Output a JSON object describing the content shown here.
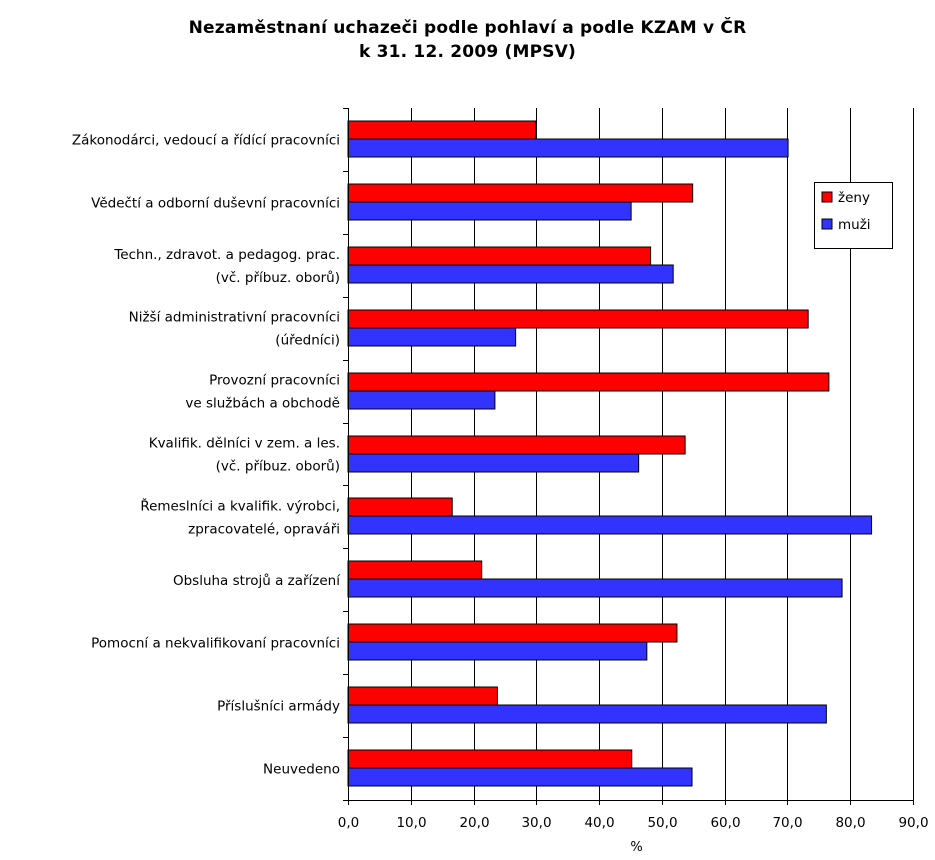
{
  "chart_data": {
    "type": "bar",
    "orientation": "horizontal",
    "title_line1": "Nezaměstnaní uchazeči podle pohlaví a podle KZAM v ČR",
    "title_line2": "k 31. 12. 2009 (MPSV)",
    "xlabel": "%",
    "ylabel": "",
    "xlim": [
      0,
      90
    ],
    "x_ticks": [
      "0,0",
      "10,0",
      "20,0",
      "30,0",
      "40,0",
      "50,0",
      "60,0",
      "70,0",
      "80,0",
      "90,0"
    ],
    "grid": "vertical",
    "legend_position": "top-right",
    "categories": [
      [
        "Zákonodárci, vedoucí a řídící pracovníci"
      ],
      [
        "Vědečtí a odborní duševní pracovníci"
      ],
      [
        "Techn., zdravot. a pedagog. prac.",
        "(vč. příbuz. oborů)"
      ],
      [
        "Nižší administrativní pracovníci",
        "(úředníci)"
      ],
      [
        "Provozní pracovníci",
        "ve službách a obchodě"
      ],
      [
        "Kvalifik. dělníci v zem. a les.",
        "(vč. příbuz. oborů)"
      ],
      [
        "Řemeslníci a kvalifik. výrobci,",
        "zpracovatelé, opraváři"
      ],
      [
        "Obsluha strojů a zařízení"
      ],
      [
        "Pomocní a nekvalifikovaní pracovníci"
      ],
      [
        "Příslušníci armády"
      ],
      [
        "Neuvedeno"
      ]
    ],
    "series": [
      {
        "name": "ženy",
        "color": "#ff0000",
        "values": [
          29.9,
          54.9,
          48.2,
          73.3,
          76.6,
          53.7,
          16.6,
          21.3,
          52.4,
          23.8,
          45.2
        ]
      },
      {
        "name": "muži",
        "color": "#3333ff",
        "values": [
          70.1,
          45.1,
          51.8,
          26.7,
          23.4,
          46.3,
          83.4,
          78.7,
          47.6,
          76.2,
          54.8
        ]
      }
    ]
  }
}
